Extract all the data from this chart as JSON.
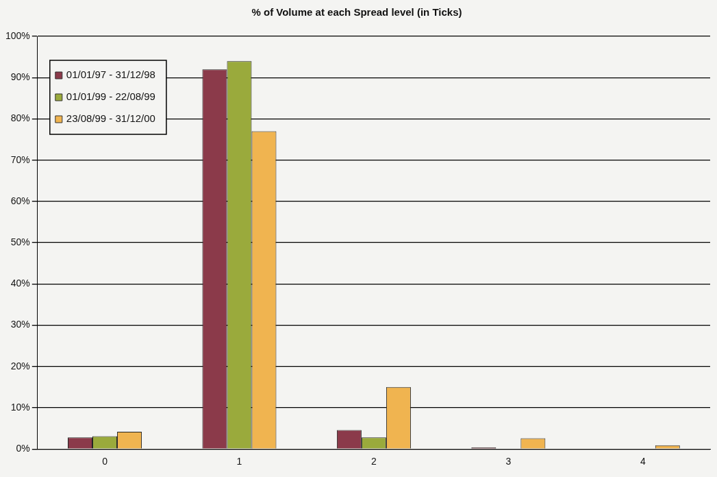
{
  "chart_data": {
    "type": "bar",
    "title": "% of Volume at each Spread level (in Ticks)",
    "categories": [
      "0",
      "1",
      "2",
      "3",
      "4"
    ],
    "series": [
      {
        "name": "01/01/97 - 31/12/98",
        "color": "#8b3a4a",
        "values": [
          2.8,
          92,
          4.6,
          0.4,
          0
        ]
      },
      {
        "name": "01/01/99 - 22/08/99",
        "color": "#9aaa3c",
        "values": [
          3.1,
          94,
          2.8,
          0,
          0
        ]
      },
      {
        "name": "23/08/99 - 31/12/00",
        "color": "#f0b450",
        "values": [
          4.2,
          77,
          15,
          2.6,
          0.9
        ]
      }
    ],
    "ylim": [
      0,
      100
    ],
    "yticks": [
      {
        "value": 0,
        "label": "0%"
      },
      {
        "value": 10,
        "label": "10%"
      },
      {
        "value": 20,
        "label": "20%"
      },
      {
        "value": 30,
        "label": "30%"
      },
      {
        "value": 40,
        "label": "40%"
      },
      {
        "value": 50,
        "label": "50%"
      },
      {
        "value": 60,
        "label": "60%"
      },
      {
        "value": 70,
        "label": "70%"
      },
      {
        "value": 80,
        "label": "80%"
      },
      {
        "value": 90,
        "label": "90%"
      },
      {
        "value": 100,
        "label": "100%"
      }
    ],
    "grid": "y",
    "legend": "top left"
  }
}
